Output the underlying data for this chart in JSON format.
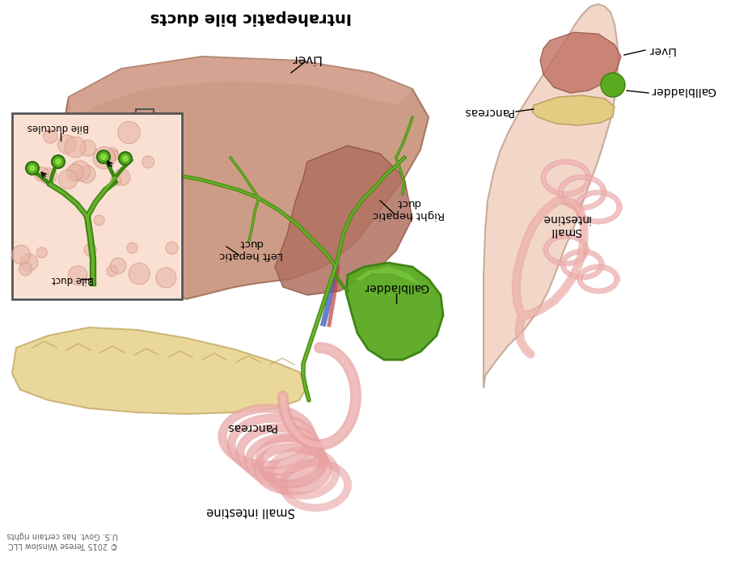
{
  "title": "Intrahepatic bile ducts",
  "background_color": "#ffffff",
  "labels": {
    "title": "Intrahepatic bile ducts",
    "liver_top": "Liver",
    "liver_right": "Liver",
    "gallbladder_main": "Gallbladder",
    "gallbladder_right": "Gallbladder",
    "right_hepatic": "Right hepatic\nduct",
    "left_hepatic": "Left hepatic\nduct",
    "bile_duct_inset": "Bile duct",
    "bile_ductules": "Bile ductules",
    "pancreas_main": "Pancreas",
    "pancreas_right": "Pancreas",
    "small_intestine_main": "Small intestine",
    "small_intestine_right": "Small\nintestine",
    "copyright": "© 2015 Terese Winslow LLC\nU.S. Govt. has certain rights"
  },
  "figsize": [
    9.3,
    7.0
  ],
  "dpi": 100
}
